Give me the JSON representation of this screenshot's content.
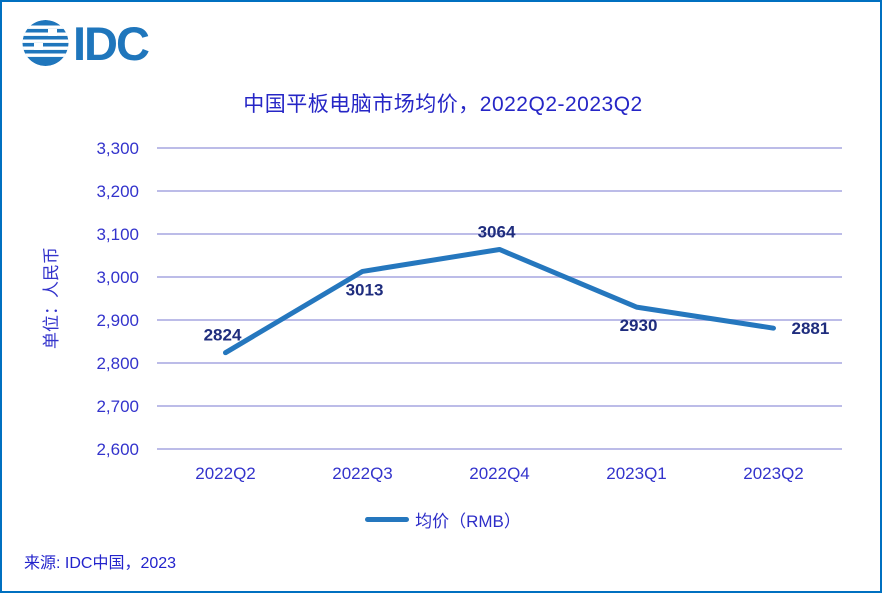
{
  "page": {
    "logo_text": "IDC",
    "title": "中国平板电脑市场均价，2022Q2-2023Q2",
    "source": "来源: IDC中国，2023"
  },
  "colors": {
    "frame_border": "#0070C0",
    "title_text": "#2626C6",
    "axis_text": "#3333CC",
    "data_label": "#1F2D7E",
    "line": "#2577BE",
    "gridline": "#BCBCE8",
    "legend_text": "#2D2DC8",
    "source_text": "#2323CC",
    "logo": "#1F76BC"
  },
  "chart_data": {
    "type": "line",
    "title": "中国平板电脑市场均价，2022Q2-2023Q2",
    "categories": [
      "2022Q2",
      "2022Q3",
      "2022Q4",
      "2023Q1",
      "2023Q2"
    ],
    "series": [
      {
        "name": "均价（RMB）",
        "values": [
          2824,
          3013,
          3064,
          2930,
          2881
        ]
      }
    ],
    "xlabel": "",
    "ylabel": "单位：人民币",
    "ylim": [
      2600,
      3300
    ],
    "ytick_step": 100,
    "grid": "horizontal",
    "legend_position": "bottom",
    "data_labels": true,
    "label_positions": [
      "above",
      "below",
      "above",
      "below",
      "right"
    ]
  }
}
